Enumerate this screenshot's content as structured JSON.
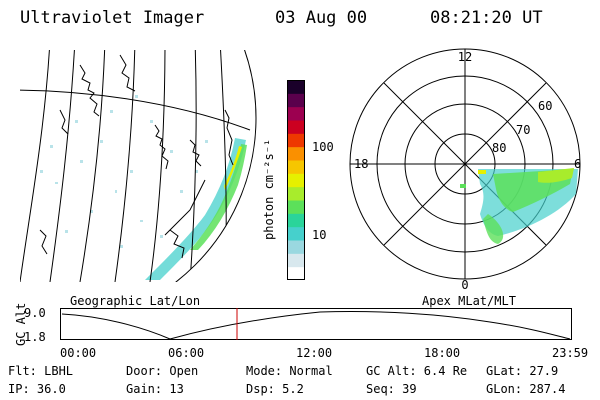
{
  "header": {
    "instrument": "Ultraviolet Imager",
    "date": "03 Aug 00",
    "time": "08:21:20 UT"
  },
  "colorbar": {
    "unit_label": "photon cm⁻²s⁻¹",
    "ticks": [
      "100",
      "10"
    ],
    "colors": [
      "#ffffff",
      "#d8e8ee",
      "#9ad8e0",
      "#46d0cc",
      "#2ad49a",
      "#5ce05a",
      "#a8ec2c",
      "#e6f000",
      "#f6c600",
      "#fa9000",
      "#ee3800",
      "#cc0020",
      "#9c0050",
      "#5a004c",
      "#1a002a"
    ]
  },
  "panels": {
    "geographic_label": "Geographic Lat/Lon",
    "apex_label": "Apex MLat/MLT"
  },
  "polar": {
    "mlt_labels": [
      "12",
      "18",
      "6",
      "0"
    ],
    "lat_labels": [
      "60",
      "70",
      "80"
    ]
  },
  "altitude_plot": {
    "ylabel": "GC Alt",
    "yticks": [
      "9.0",
      "1.8"
    ],
    "xticks": [
      "00:00",
      "06:00",
      "12:00",
      "18:00",
      "23:59"
    ],
    "marker_color": "#cc0000"
  },
  "info": {
    "row1": {
      "flt": "Flt: LBHL",
      "door": "Door: Open",
      "mode": "Mode: Normal",
      "gcalt": "GC Alt: 6.4 Re",
      "glat": "GLat:  27.9"
    },
    "row2": {
      "ip": "IP: 36.0",
      "gain": "Gain: 13",
      "dsp": "Dsp:     5.2",
      "seq": "Seq: 39",
      "glon": "GLon: 287.4"
    }
  }
}
